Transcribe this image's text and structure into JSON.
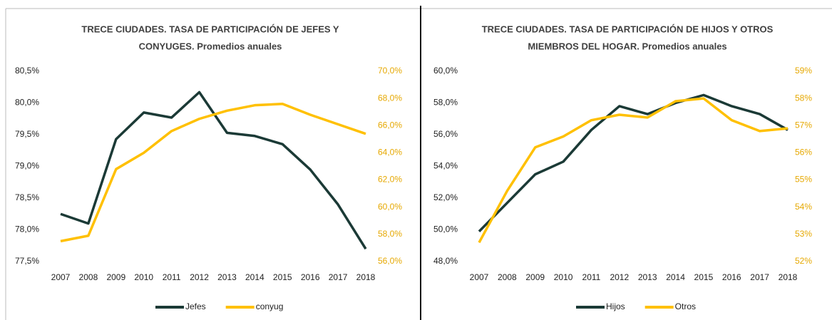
{
  "chart_data": [
    {
      "type": "line",
      "title": [
        "TRECE CIUDADES. TASA DE PARTICIPACIÓN DE JEFES Y",
        "CONYUGES. Promedios anuales"
      ],
      "categories": [
        "2007",
        "2008",
        "2009",
        "2010",
        "2011",
        "2012",
        "2013",
        "2014",
        "2015",
        "2016",
        "2017",
        "2018"
      ],
      "series": [
        {
          "name": "Jefes",
          "color": "#1b3a36",
          "values": [
            78.25,
            78.1,
            79.43,
            79.85,
            79.77,
            80.17,
            79.53,
            79.48,
            79.35,
            78.95,
            78.4,
            77.7
          ]
        },
        {
          "name": "conyug",
          "color": "#ffc000",
          "axis": "y2",
          "values": [
            57.5,
            57.9,
            62.8,
            64.0,
            65.6,
            66.5,
            67.1,
            67.5,
            67.6,
            66.8,
            66.1,
            65.4
          ]
        }
      ],
      "ylim": [
        77.5,
        80.5
      ],
      "yticks": [
        {
          "value": 77.5,
          "label": "77,5%"
        },
        {
          "value": 78.0,
          "label": "78,0%"
        },
        {
          "value": 78.5,
          "label": "78,5%"
        },
        {
          "value": 79.0,
          "label": "79,0%"
        },
        {
          "value": 79.5,
          "label": "79,5%"
        },
        {
          "value": 80.0,
          "label": "80,0%"
        },
        {
          "value": 80.5,
          "label": "80,5%"
        }
      ],
      "y2lim": [
        56,
        70
      ],
      "y2ticks": [
        {
          "value": 56,
          "label": "56,0%"
        },
        {
          "value": 58,
          "label": "58,0%"
        },
        {
          "value": 60,
          "label": "60,0%"
        },
        {
          "value": 62,
          "label": "62,0%"
        },
        {
          "value": 64,
          "label": "64,0%"
        },
        {
          "value": 66,
          "label": "66,0%"
        },
        {
          "value": 68,
          "label": "68,0%"
        },
        {
          "value": 70,
          "label": "70,0%"
        }
      ],
      "legend": "bottom"
    },
    {
      "type": "line",
      "title": [
        "TRECE CIUDADES. TASA DE PARTICIPACIÓN DE HIJOS Y OTROS",
        "MIEMBROS DEL HOGAR. Promedios anuales"
      ],
      "categories": [
        "2007",
        "2008",
        "2009",
        "2010",
        "2011",
        "2012",
        "2013",
        "2014",
        "2015",
        "2016",
        "2017",
        "2018"
      ],
      "series": [
        {
          "name": "Hijos",
          "color": "#1b3a36",
          "values": [
            49.9,
            51.7,
            53.5,
            54.3,
            56.3,
            57.8,
            57.3,
            58.0,
            58.5,
            57.8,
            57.3,
            56.3
          ]
        },
        {
          "name": "Otros",
          "color": "#ffc000",
          "axis": "y2",
          "values": [
            52.7,
            54.6,
            56.2,
            56.6,
            57.2,
            57.4,
            57.3,
            57.9,
            58.0,
            57.2,
            56.8,
            56.9
          ]
        }
      ],
      "ylim": [
        48,
        60
      ],
      "yticks": [
        {
          "value": 48,
          "label": "48,0%"
        },
        {
          "value": 50,
          "label": "50,0%"
        },
        {
          "value": 52,
          "label": "52,0%"
        },
        {
          "value": 54,
          "label": "54,0%"
        },
        {
          "value": 56,
          "label": "56,0%"
        },
        {
          "value": 58,
          "label": "58,0%"
        },
        {
          "value": 60,
          "label": "60,0%"
        }
      ],
      "y2lim": [
        52,
        59
      ],
      "y2ticks": [
        {
          "value": 52,
          "label": "52%"
        },
        {
          "value": 53,
          "label": "53%"
        },
        {
          "value": 54,
          "label": "54%"
        },
        {
          "value": 55,
          "label": "55%"
        },
        {
          "value": 56,
          "label": "56%"
        },
        {
          "value": 57,
          "label": "57%"
        },
        {
          "value": 58,
          "label": "58%"
        },
        {
          "value": 59,
          "label": "59%"
        }
      ],
      "legend": "bottom"
    }
  ]
}
